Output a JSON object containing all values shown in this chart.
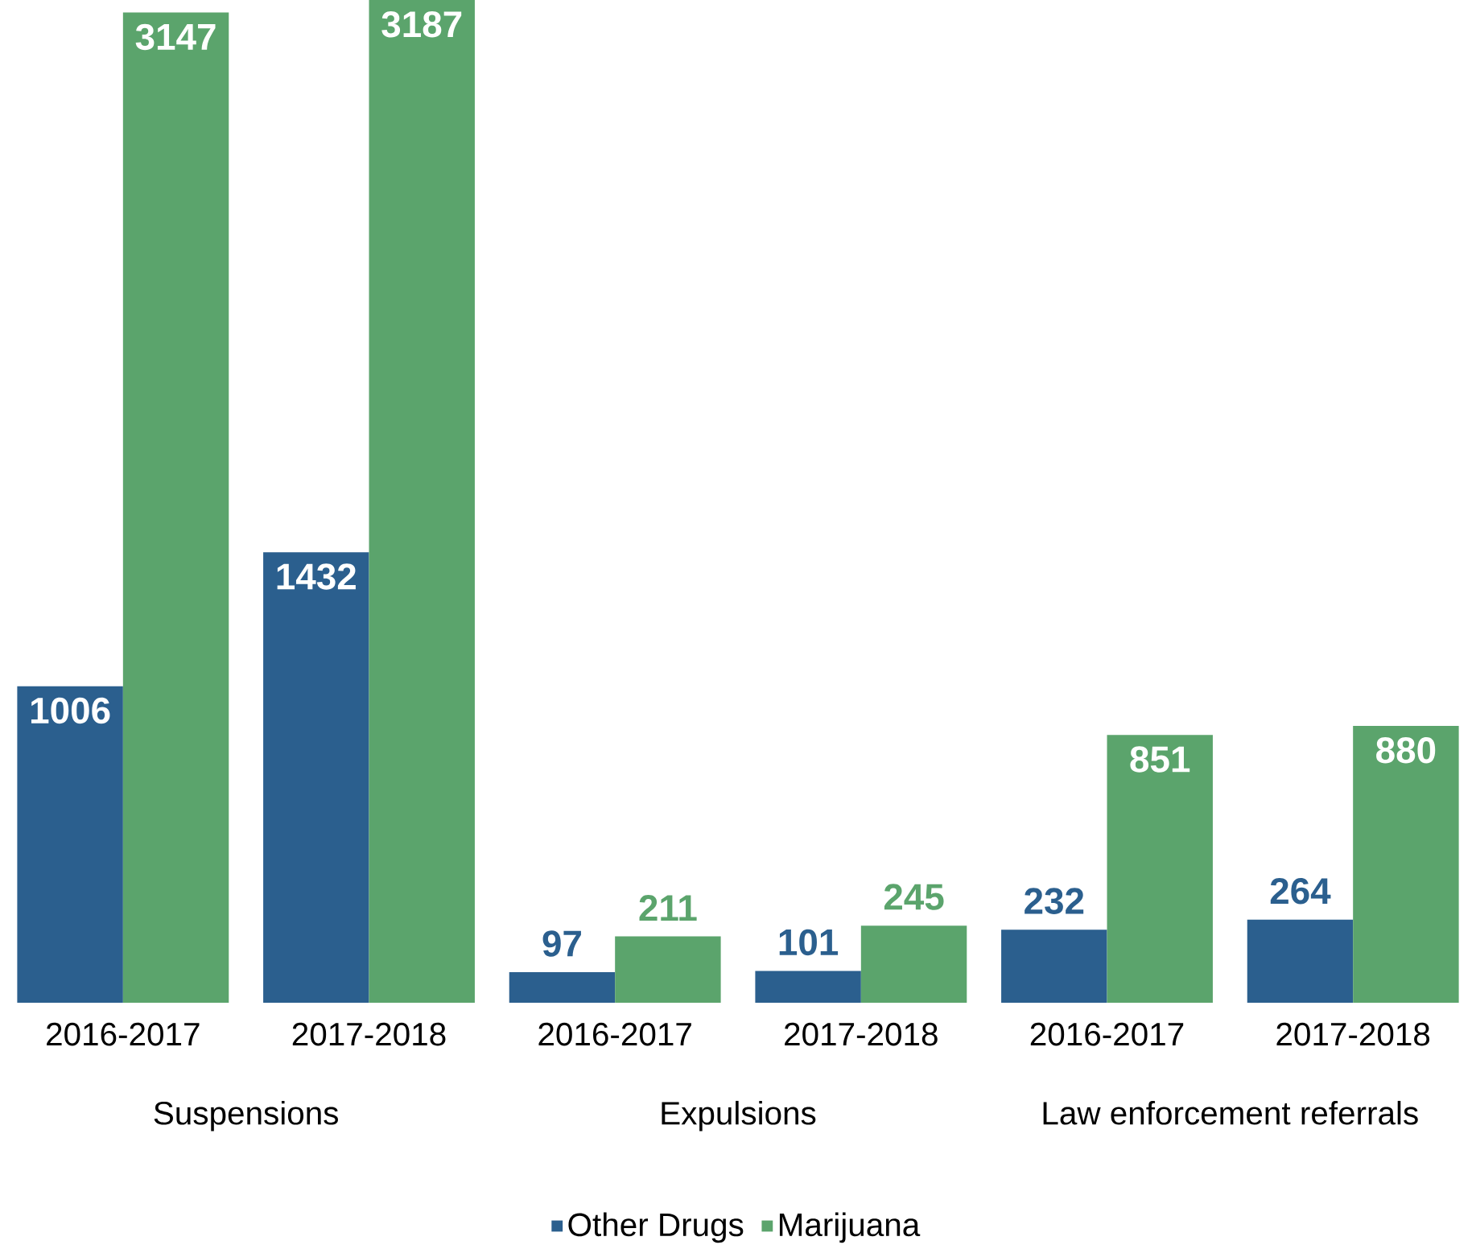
{
  "chart_data": {
    "type": "bar",
    "categories": [
      "2016-2017",
      "2017-2018",
      "2016-2017",
      "2017-2018",
      "2016-2017",
      "2017-2018"
    ],
    "series": [
      {
        "name": "Other Drugs",
        "color": "#2b5f8e",
        "values": [
          1006,
          1432,
          97,
          101,
          232,
          264
        ]
      },
      {
        "name": "Marijuana",
        "color": "#5ba46c",
        "values": [
          3147,
          3187,
          211,
          245,
          851,
          880
        ]
      }
    ],
    "annotations": [
      "Suspensions",
      "Expulsions",
      "Law enforcement referrals"
    ],
    "data_labels": true,
    "legend": "bottom"
  }
}
